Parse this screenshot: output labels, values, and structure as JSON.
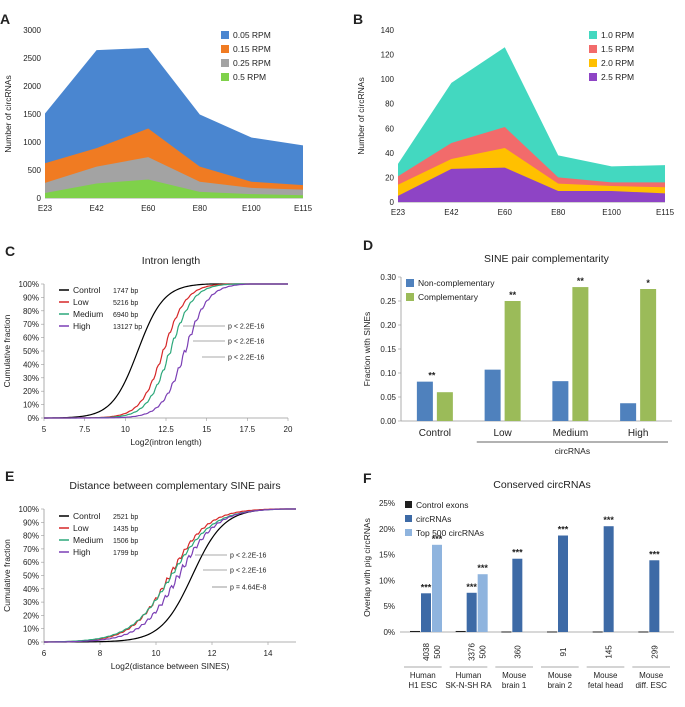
{
  "panels": {
    "A": {
      "letter": "A",
      "chart_data": {
        "type": "area",
        "categories": [
          "E23",
          "E42",
          "E60",
          "E80",
          "E100",
          "E115"
        ],
        "ylabel": "Number of circRNAs",
        "ylim": [
          0,
          3000
        ],
        "yticks": [
          0,
          500,
          1000,
          1500,
          2000,
          2500,
          3000
        ],
        "series": [
          {
            "name": "0.05 RPM",
            "color": "#4A86D0",
            "values": [
              1510,
              2640,
              2680,
              1490,
              1080,
              940
            ]
          },
          {
            "name": "0.15 RPM",
            "color": "#F07B22",
            "values": [
              620,
              890,
              1240,
              560,
              290,
              230
            ]
          },
          {
            "name": "0.25 RPM",
            "color": "#A3A3A3",
            "values": [
              270,
              560,
              730,
              290,
              180,
              150
            ]
          },
          {
            "name": "0.5 RPM",
            "color": "#7FD14A",
            "values": [
              90,
              260,
              330,
              110,
              70,
              50
            ]
          }
        ]
      }
    },
    "B": {
      "letter": "B",
      "chart_data": {
        "type": "area",
        "categories": [
          "E23",
          "E42",
          "E60",
          "E80",
          "E100",
          "E115"
        ],
        "ylabel": "Number of circRNAs",
        "ylim": [
          0,
          140
        ],
        "yticks": [
          0,
          20,
          40,
          60,
          80,
          100,
          120,
          140
        ],
        "series": [
          {
            "name": "1.0 RPM",
            "color": "#43D8C0",
            "values": [
              31,
              97,
              126,
              38,
              29,
              30
            ]
          },
          {
            "name": "1.5 RPM",
            "color": "#F26B6B",
            "values": [
              21,
              48,
              61,
              20,
              16,
              16
            ]
          },
          {
            "name": "2.0 RPM",
            "color": "#FFC000",
            "values": [
              14,
              35,
              44,
              15,
              13,
              12
            ]
          },
          {
            "name": "2.5 RPM",
            "color": "#8E44C5",
            "values": [
              5,
              27,
              28,
              9,
              9,
              7
            ]
          }
        ]
      }
    },
    "C": {
      "letter": "C",
      "chart_data": {
        "type": "line",
        "title": "Intron length",
        "xlabel": "Log2(intron length)",
        "ylabel": "Cumulative fraction",
        "xlim": [
          5,
          20
        ],
        "xticks": [
          5,
          7.5,
          10,
          12.5,
          15,
          17.5,
          20
        ],
        "ylim": [
          0,
          1
        ],
        "yticks": [
          "0%",
          "10%",
          "20%",
          "30%",
          "40%",
          "50%",
          "60%",
          "70%",
          "80%",
          "90%",
          "100%"
        ],
        "series": [
          {
            "name": "Control",
            "median": "1747 bp",
            "color": "#000000",
            "median_x": 10.77,
            "spread": 1.35,
            "jitter": 0
          },
          {
            "name": "Low",
            "median": "5216 bp",
            "color": "#D62728",
            "median_x": 12.35,
            "spread": 1.2,
            "jitter": 0.01
          },
          {
            "name": "Medium",
            "median": "6940 bp",
            "color": "#2CA87A",
            "median_x": 12.76,
            "spread": 1.2,
            "jitter": 0.012
          },
          {
            "name": "High",
            "median": "13127 bp",
            "color": "#7B3FB5",
            "median_x": 13.68,
            "spread": 1.2,
            "jitter": 0.015
          }
        ],
        "annotations": [
          "p < 2.2E-16",
          "p < 2.2E-16",
          "p < 2.2E-16"
        ]
      }
    },
    "D": {
      "letter": "D",
      "chart_data": {
        "type": "bar",
        "title": "SINE pair complementarity",
        "xlabel": "circRNAs",
        "ylabel": "Fraction with SINEs",
        "ylim": [
          0,
          0.3
        ],
        "yticks": [
          "0.00",
          "0.05",
          "0.10",
          "0.15",
          "0.20",
          "0.25",
          "0.30"
        ],
        "categories": [
          "Control",
          "Low",
          "Medium",
          "High"
        ],
        "series": [
          {
            "name": "Non-complementary",
            "color": "#4F81BD",
            "values": [
              0.082,
              0.107,
              0.083,
              0.037
            ]
          },
          {
            "name": "Complementary",
            "color": "#9BBB59",
            "values": [
              0.06,
              0.25,
              0.279,
              0.275
            ]
          }
        ],
        "significance": [
          "**",
          "**",
          "**",
          "*"
        ]
      }
    },
    "E": {
      "letter": "E",
      "chart_data": {
        "type": "line",
        "title": "Distance between complementary SINE pairs",
        "xlabel": "Log2(distance between SINES)",
        "ylabel": "Cumulative fraction",
        "xlim": [
          6,
          15
        ],
        "xticks": [
          6,
          8,
          10,
          12,
          14
        ],
        "ylim": [
          0,
          1
        ],
        "yticks": [
          "0%",
          "10%",
          "20%",
          "30%",
          "40%",
          "50%",
          "60%",
          "70%",
          "80%",
          "90%",
          "100%"
        ],
        "series": [
          {
            "name": "Control",
            "median": "2521 bp",
            "color": "#000000",
            "median_x": 11.3,
            "spread": 0.95,
            "jitter": 0
          },
          {
            "name": "Low",
            "median": "1435 bp",
            "color": "#D62728",
            "median_x": 10.5,
            "spread": 1.15,
            "jitter": 0.012
          },
          {
            "name": "Medium",
            "median": "1506 bp",
            "color": "#2CA87A",
            "median_x": 10.56,
            "spread": 1.25,
            "jitter": 0.008
          },
          {
            "name": "High",
            "median": "1799 bp",
            "color": "#7B3FB5",
            "median_x": 10.81,
            "spread": 1.15,
            "jitter": 0.015
          }
        ],
        "annotations": [
          "p < 2.2E-16",
          "p < 2.2E-16",
          "p = 4.64E-8"
        ]
      }
    },
    "F": {
      "letter": "F",
      "chart_data": {
        "type": "bar",
        "title": "Conserved circRNAs",
        "ylabel": "Overlap with pig circRNAs",
        "ylim": [
          0,
          0.25
        ],
        "yticks": [
          "0%",
          "5%",
          "10%",
          "15%",
          "20%",
          "25%"
        ],
        "categories": [
          "Human H1 ESC",
          "Human SK-N-SH RA",
          "Mouse brain 1",
          "Mouse brain 2",
          "Mouse fetal head",
          "Mouse diff. ESC"
        ],
        "category_lines": [
          [
            "Human",
            "H1 ESC"
          ],
          [
            "Human",
            "SK-N-SH RA"
          ],
          [
            "Mouse",
            "brain 1"
          ],
          [
            "Mouse",
            "brain 2"
          ],
          [
            "Mouse",
            "fetal head"
          ],
          [
            "Mouse",
            "diff. ESC"
          ]
        ],
        "series": [
          {
            "name": "Control exons",
            "color": "#1F1F1F",
            "values": [
              0.002,
              0.002,
              0.001,
              0.001,
              0.001,
              0.001
            ]
          },
          {
            "name": "circRNAs",
            "color": "#3D6AA6",
            "values": [
              0.075,
              0.076,
              0.142,
              0.187,
              0.205,
              0.139
            ]
          },
          {
            "name": "Top 500 circRNAs",
            "color": "#8FB4DE",
            "values": [
              0.169,
              0.112,
              null,
              null,
              null,
              null
            ]
          }
        ],
        "counts": [
          [
            "4038",
            "500"
          ],
          [
            "3376",
            "500"
          ],
          [
            "360"
          ],
          [
            "91"
          ],
          [
            "145"
          ],
          [
            "299"
          ]
        ],
        "significance": [
          [
            "***",
            "***"
          ],
          [
            "***",
            "***"
          ],
          [
            "***"
          ],
          [
            "***"
          ],
          [
            "***"
          ],
          [
            "***"
          ]
        ]
      }
    }
  }
}
